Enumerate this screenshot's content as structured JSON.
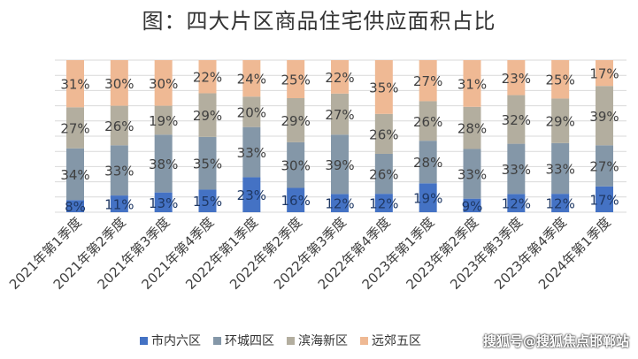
{
  "chart_data": {
    "type": "bar",
    "stacked": true,
    "percent": true,
    "title": "图：四大片区商品住宅供应面积占比",
    "categories": [
      "2021年第1季度",
      "2021年第2季度",
      "2021年第3季度",
      "2021年第4季度",
      "2022年第1季度",
      "2022年第2季度",
      "2022年第3季度",
      "2022年第4季度",
      "2023年第1季度",
      "2023年第2季度",
      "2023年第3季度",
      "2023年第4季度",
      "2024年第1季度"
    ],
    "series": [
      {
        "name": "市内六区",
        "color": "#4472C4",
        "values": [
          8,
          11,
          13,
          15,
          23,
          16,
          12,
          12,
          19,
          9,
          12,
          12,
          17
        ]
      },
      {
        "name": "环城四区",
        "color": "#8497A8",
        "values": [
          34,
          33,
          38,
          35,
          33,
          30,
          39,
          26,
          28,
          33,
          33,
          33,
          27
        ]
      },
      {
        "name": "滨海新区",
        "color": "#B3AE9F",
        "values": [
          27,
          26,
          19,
          29,
          20,
          29,
          27,
          26,
          26,
          28,
          32,
          29,
          39
        ]
      },
      {
        "name": "远郊五区",
        "color": "#EFB994",
        "values": [
          31,
          30,
          30,
          22,
          24,
          25,
          22,
          35,
          27,
          31,
          23,
          25,
          17
        ]
      }
    ],
    "ylim": [
      0,
      100
    ],
    "grid": true,
    "legend_position": "bottom"
  },
  "watermark": "搜狐号@搜狐焦点邯郸站"
}
